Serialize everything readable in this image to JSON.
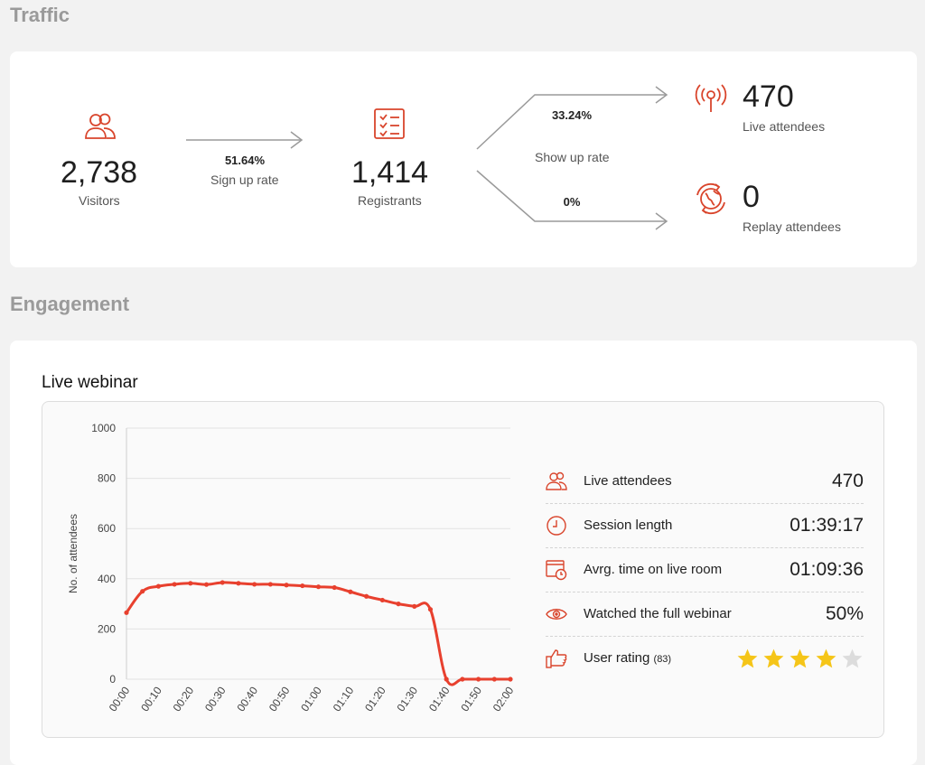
{
  "traffic": {
    "title": "Traffic",
    "visitors": {
      "value": "2,738",
      "label": "Visitors"
    },
    "signup_rate": {
      "value": "51.64%",
      "label": "Sign up rate"
    },
    "registrants": {
      "value": "1,414",
      "label": "Registrants"
    },
    "show_up_live": {
      "value": "33.24%"
    },
    "show_up_label": "Show up rate",
    "show_up_replay": {
      "value": "0%"
    },
    "live_attendees": {
      "value": "470",
      "label": "Live attendees"
    },
    "replay_attendees": {
      "value": "0",
      "label": "Replay attendees"
    },
    "accent": "#d9452c"
  },
  "engagement": {
    "title": "Engagement",
    "live_webinar_title": "Live webinar",
    "stats": {
      "live_attendees": {
        "label": "Live attendees",
        "value": "470",
        "icon": "attendees-icon"
      },
      "session_length": {
        "label": "Session length",
        "value": "01:39:17",
        "icon": "clock-icon"
      },
      "avg_time": {
        "label": "Avrg. time on live room",
        "value": "01:09:36",
        "icon": "calendar-clock-icon"
      },
      "watched_full": {
        "label": "Watched the full webinar",
        "value": "50%",
        "icon": "eye-icon"
      },
      "user_rating": {
        "label": "User rating",
        "count": "(83)",
        "value": 4,
        "max": 5,
        "icon": "thumbs-up-icon",
        "star_color": "#f5c518",
        "empty_star_color": "#dcdcdc"
      }
    }
  },
  "chart_data": {
    "type": "line",
    "ylabel": "No. of attendees",
    "xlabel": "",
    "ylim": [
      0,
      1000
    ],
    "yticks": [
      0,
      200,
      400,
      600,
      800,
      1000
    ],
    "xticks": [
      "00:00",
      "00:10",
      "00:20",
      "00:30",
      "00:40",
      "00:50",
      "01:00",
      "01:10",
      "01:20",
      "01:30",
      "01:40",
      "01:50",
      "02:00"
    ],
    "x": [
      "00:00",
      "00:05",
      "00:10",
      "00:15",
      "00:20",
      "00:25",
      "00:30",
      "00:35",
      "00:40",
      "00:45",
      "00:50",
      "00:55",
      "01:00",
      "01:05",
      "01:10",
      "01:15",
      "01:20",
      "01:25",
      "01:30",
      "01:35",
      "01:40",
      "01:45",
      "01:50",
      "01:55",
      "02:00"
    ],
    "series": [
      {
        "values": [
          265,
          350,
          370,
          378,
          382,
          377,
          385,
          382,
          378,
          378,
          375,
          372,
          368,
          365,
          348,
          330,
          315,
          300,
          290,
          278,
          0,
          0,
          0,
          0,
          0
        ],
        "color": "#e8402e"
      }
    ],
    "grid": true
  }
}
